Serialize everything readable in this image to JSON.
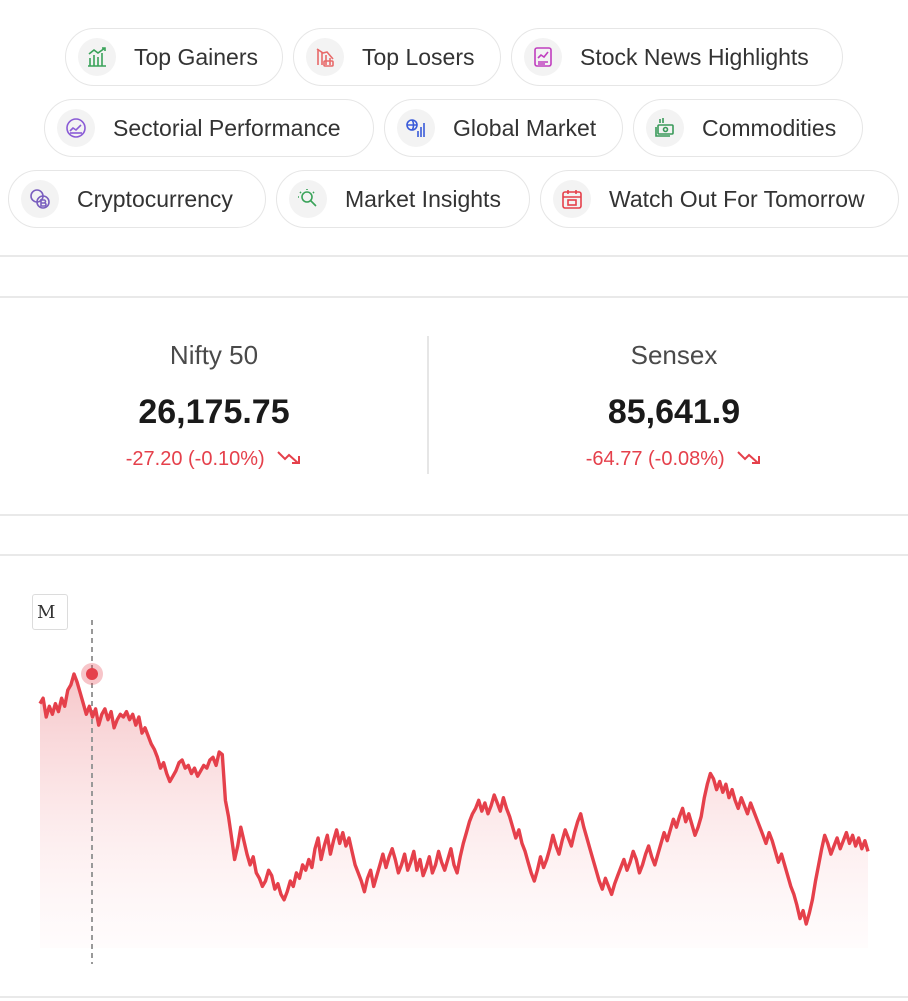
{
  "quick_links": [
    {
      "label": "Top Gainers",
      "icon": "bar-chart-up-icon",
      "color": "#3aa35a"
    },
    {
      "label": "Top Losers",
      "icon": "loss-chart-icon",
      "color": "#e86a6a"
    },
    {
      "label": "Stock News Highlights",
      "icon": "news-chart-icon",
      "color": "#c03fbf"
    },
    {
      "label": "Sectorial Performance",
      "icon": "sector-gauge-icon",
      "color": "#8a5bd6"
    },
    {
      "label": "Global Market",
      "icon": "globe-chart-icon",
      "color": "#3a5bd9"
    },
    {
      "label": "Commodities",
      "icon": "money-stack-icon",
      "color": "#3a9a5a"
    },
    {
      "label": "Cryptocurrency",
      "icon": "crypto-coins-icon",
      "color": "#7a5fbf"
    },
    {
      "label": "Market Insights",
      "icon": "bulb-search-icon",
      "color": "#3aa35a"
    },
    {
      "label": "Watch Out For Tomorrow",
      "icon": "calendar-icon",
      "color": "#e5404b"
    }
  ],
  "indices": [
    {
      "name": "Nifty 50",
      "value": "26,175.75",
      "change": "-27.20 (-0.10%)",
      "trend": "down"
    },
    {
      "name": "Sensex",
      "value": "85,641.9",
      "change": "-64.77 (-0.08%)",
      "trend": "down"
    }
  ],
  "chart": {
    "tooltip_text": "M",
    "line_color": "#e5404b",
    "values": [
      38,
      40,
      33,
      37,
      34,
      38,
      35,
      40,
      37,
      43,
      45,
      49,
      46,
      42,
      38,
      34,
      37,
      33,
      36,
      30,
      34,
      36,
      32,
      35,
      29,
      32,
      34,
      33,
      35,
      32,
      34,
      30,
      33,
      27,
      29,
      26,
      23,
      21,
      18,
      14,
      16,
      12,
      9,
      11,
      13,
      16,
      17,
      14,
      15,
      12,
      14,
      11,
      13,
      15,
      14,
      17,
      18,
      15,
      20,
      19,
      2,
      -4,
      -12,
      -20,
      -15,
      -8,
      -13,
      -18,
      -22,
      -19,
      -25,
      -27,
      -30,
      -28,
      -24,
      -26,
      -31,
      -29,
      -33,
      -35,
      -32,
      -28,
      -30,
      -25,
      -27,
      -22,
      -24,
      -20,
      -23,
      -16,
      -12,
      -20,
      -15,
      -11,
      -18,
      -13,
      -9,
      -14,
      -10,
      -15,
      -12,
      -17,
      -22,
      -25,
      -28,
      -32,
      -27,
      -24,
      -30,
      -26,
      -22,
      -18,
      -23,
      -19,
      -16,
      -20,
      -25,
      -22,
      -18,
      -24,
      -21,
      -17,
      -24,
      -20,
      -26,
      -23,
      -19,
      -25,
      -22,
      -17,
      -21,
      -24,
      -20,
      -16,
      -22,
      -25,
      -19,
      -14,
      -10,
      -6,
      -3,
      -1,
      2,
      -2,
      1,
      -3,
      0,
      4,
      1,
      -2,
      3,
      -1,
      -4,
      -8,
      -12,
      -9,
      -14,
      -17,
      -21,
      -25,
      -28,
      -24,
      -19,
      -23,
      -20,
      -16,
      -11,
      -15,
      -18,
      -13,
      -9,
      -12,
      -15,
      -10,
      -6,
      -3,
      -8,
      -12,
      -16,
      -20,
      -24,
      -28,
      -31,
      -27,
      -30,
      -33,
      -29,
      -26,
      -23,
      -20,
      -24,
      -21,
      -17,
      -20,
      -25,
      -22,
      -18,
      -15,
      -19,
      -22,
      -18,
      -14,
      -10,
      -13,
      -9,
      -5,
      -8,
      -4,
      -1,
      -6,
      -3,
      -7,
      -11,
      -8,
      -4,
      3,
      8,
      12,
      10,
      6,
      9,
      5,
      8,
      3,
      6,
      2,
      -1,
      3,
      0,
      -3,
      1,
      -2,
      -5,
      -8,
      -11,
      -14,
      -10,
      -13,
      -17,
      -21,
      -18,
      -22,
      -26,
      -30,
      -33,
      -37,
      -42,
      -39,
      -44,
      -40,
      -35,
      -28,
      -22,
      -16,
      -11,
      -14,
      -18,
      -15,
      -12,
      -16,
      -13,
      -10,
      -14,
      -11,
      -15,
      -12,
      -16,
      -13,
      -17
    ]
  }
}
